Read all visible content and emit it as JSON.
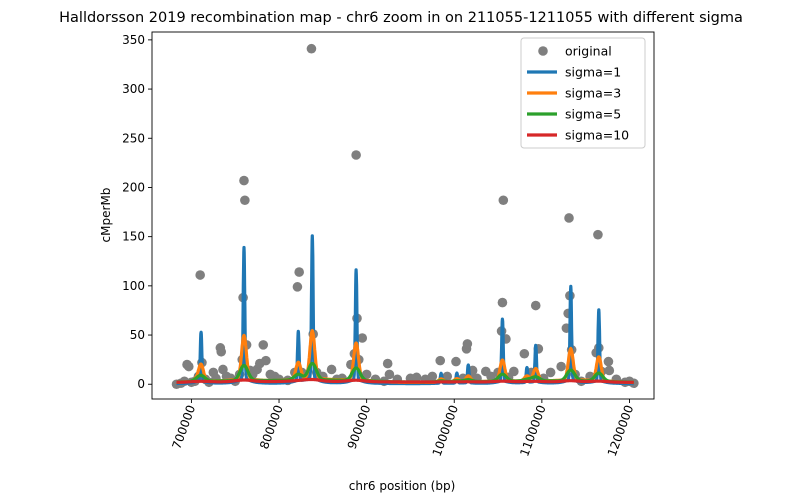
{
  "chart_data": {
    "type": "line",
    "title": "Halldorsson 2019 recombination map - chr6 zoom in on 211055-1211055 with different sigma",
    "xlabel": "chr6 position (bp)",
    "ylabel": "cMperMb",
    "xlim": [
      655000,
      1228000
    ],
    "ylim": [
      -15,
      358
    ],
    "x_ticks": [
      700000,
      800000,
      900000,
      1000000,
      1100000,
      1200000
    ],
    "x_tick_labels": [
      "700000",
      "800000",
      "900000",
      "1000000",
      "1100000",
      "1200000"
    ],
    "y_ticks": [
      0,
      50,
      100,
      150,
      200,
      250,
      300,
      350
    ],
    "y_tick_labels": [
      "0",
      "50",
      "100",
      "150",
      "200",
      "250",
      "300",
      "350"
    ],
    "x_tick_rotation": 70,
    "legend_position": "top-right",
    "grid": false,
    "peaks": [
      {
        "x": 706000,
        "y": 8
      },
      {
        "x": 711000,
        "y": 50
      },
      {
        "x": 760000,
        "y": 133
      },
      {
        "x": 822000,
        "y": 50
      },
      {
        "x": 838000,
        "y": 144
      },
      {
        "x": 888000,
        "y": 111
      },
      {
        "x": 985000,
        "y": 10
      },
      {
        "x": 1003000,
        "y": 10
      },
      {
        "x": 1016000,
        "y": 18
      },
      {
        "x": 1055000,
        "y": 63
      },
      {
        "x": 1083000,
        "y": 15
      },
      {
        "x": 1093000,
        "y": 37
      },
      {
        "x": 1133000,
        "y": 95
      },
      {
        "x": 1165000,
        "y": 72
      }
    ],
    "series": [
      {
        "name": "original",
        "style": "scatter",
        "color": "#7f7f7f",
        "points": [
          [
            683000,
            0
          ],
          [
            688000,
            1
          ],
          [
            692000,
            3
          ],
          [
            695000,
            20
          ],
          [
            697000,
            18
          ],
          [
            700000,
            2
          ],
          [
            704000,
            3
          ],
          [
            708000,
            8
          ],
          [
            710000,
            111
          ],
          [
            712000,
            22
          ],
          [
            716000,
            5
          ],
          [
            720000,
            2
          ],
          [
            725000,
            12
          ],
          [
            728000,
            6
          ],
          [
            733000,
            37
          ],
          [
            734000,
            33
          ],
          [
            736000,
            15
          ],
          [
            740000,
            8
          ],
          [
            745000,
            6
          ],
          [
            750000,
            3
          ],
          [
            755000,
            10
          ],
          [
            758000,
            25
          ],
          [
            759000,
            88
          ],
          [
            760000,
            207
          ],
          [
            761000,
            187
          ],
          [
            763000,
            40
          ],
          [
            767000,
            14
          ],
          [
            770000,
            10
          ],
          [
            775000,
            15
          ],
          [
            778000,
            21
          ],
          [
            782000,
            40
          ],
          [
            785000,
            24
          ],
          [
            790000,
            10
          ],
          [
            795000,
            8
          ],
          [
            800000,
            5
          ],
          [
            810000,
            4
          ],
          [
            818000,
            12
          ],
          [
            821000,
            99
          ],
          [
            823000,
            114
          ],
          [
            826000,
            12
          ],
          [
            831000,
            8
          ],
          [
            837000,
            341
          ],
          [
            839000,
            51
          ],
          [
            843000,
            12
          ],
          [
            850000,
            8
          ],
          [
            860000,
            15
          ],
          [
            866000,
            5
          ],
          [
            872000,
            6
          ],
          [
            882000,
            20
          ],
          [
            886000,
            31
          ],
          [
            888000,
            233
          ],
          [
            889000,
            67
          ],
          [
            891000,
            25
          ],
          [
            895000,
            47
          ],
          [
            900000,
            10
          ],
          [
            910000,
            5
          ],
          [
            920000,
            3
          ],
          [
            924000,
            21
          ],
          [
            926000,
            10
          ],
          [
            935000,
            5
          ],
          [
            950000,
            6
          ],
          [
            957000,
            7
          ],
          [
            967000,
            5
          ],
          [
            975000,
            8
          ],
          [
            984000,
            24
          ],
          [
            992000,
            8
          ],
          [
            1002000,
            23
          ],
          [
            1010000,
            6
          ],
          [
            1014000,
            36
          ],
          [
            1015000,
            41
          ],
          [
            1019000,
            10
          ],
          [
            1021000,
            14
          ],
          [
            1026000,
            6
          ],
          [
            1036000,
            13
          ],
          [
            1042000,
            8
          ],
          [
            1050000,
            12
          ],
          [
            1054000,
            54
          ],
          [
            1055000,
            83
          ],
          [
            1056000,
            187
          ],
          [
            1059000,
            46
          ],
          [
            1062000,
            7
          ],
          [
            1068000,
            13
          ],
          [
            1080000,
            31
          ],
          [
            1088000,
            12
          ],
          [
            1093000,
            80
          ],
          [
            1096000,
            36
          ],
          [
            1102000,
            6
          ],
          [
            1110000,
            12
          ],
          [
            1122000,
            18
          ],
          [
            1128000,
            57
          ],
          [
            1130000,
            72
          ],
          [
            1131000,
            169
          ],
          [
            1132000,
            90
          ],
          [
            1134000,
            35
          ],
          [
            1138000,
            10
          ],
          [
            1145000,
            3
          ],
          [
            1155000,
            8
          ],
          [
            1162000,
            32
          ],
          [
            1164000,
            152
          ],
          [
            1165000,
            37
          ],
          [
            1168000,
            13
          ],
          [
            1176000,
            23
          ],
          [
            1177000,
            14
          ],
          [
            1185000,
            5
          ],
          [
            1195000,
            2
          ],
          [
            1200000,
            3
          ],
          [
            1205000,
            1
          ]
        ]
      },
      {
        "name": "sigma=1",
        "style": "line",
        "color": "#1f77b4"
      },
      {
        "name": "sigma=3",
        "style": "line",
        "color": "#ff7f0e"
      },
      {
        "name": "sigma=5",
        "style": "line",
        "color": "#2ca02c"
      },
      {
        "name": "sigma=10",
        "style": "line",
        "color": "#d62728"
      }
    ]
  }
}
